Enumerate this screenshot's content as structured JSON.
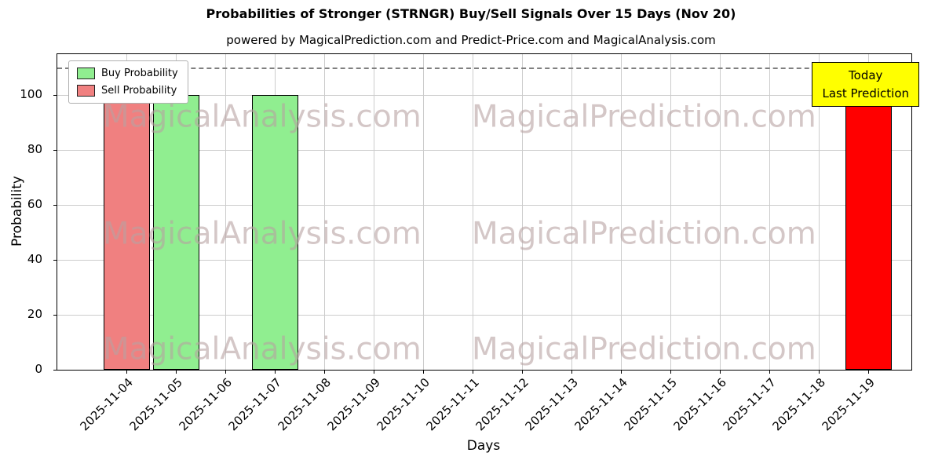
{
  "header": {
    "title": "Probabilities of Stronger (STRNGR) Buy/Sell Signals Over 15 Days (Nov 20)",
    "subtitle": "powered by MagicalPrediction.com and Predict-Price.com and MagicalAnalysis.com"
  },
  "chart_data": {
    "type": "bar",
    "title": "Probabilities of Stronger (STRNGR) Buy/Sell Signals Over 15 Days (Nov 20)",
    "subtitle": "powered by MagicalPrediction.com and Predict-Price.com and MagicalAnalysis.com",
    "xlabel": "Days",
    "ylabel": "Probability",
    "ylim": [
      0,
      115
    ],
    "yticks": [
      0,
      20,
      40,
      60,
      80,
      100
    ],
    "grid": true,
    "dashed_guide_y": 110,
    "categories": [
      "2025-11-04",
      "2025-11-05",
      "2025-11-06",
      "2025-11-07",
      "2025-11-08",
      "2025-11-09",
      "2025-11-10",
      "2025-11-11",
      "2025-11-12",
      "2025-11-13",
      "2025-11-14",
      "2025-11-15",
      "2025-11-16",
      "2025-11-17",
      "2025-11-18",
      "2025-11-19"
    ],
    "series": [
      {
        "name": "Buy Probability",
        "color": "#90ee90",
        "values": [
          0,
          100,
          0,
          100,
          0,
          0,
          0,
          0,
          0,
          0,
          0,
          0,
          0,
          0,
          0,
          0
        ]
      },
      {
        "name": "Sell Probability",
        "color": "#f08080",
        "values": [
          100,
          0,
          0,
          0,
          0,
          0,
          0,
          0,
          0,
          0,
          0,
          0,
          0,
          0,
          0,
          0
        ]
      },
      {
        "name": "Today Last Prediction",
        "color": "#ff0000",
        "values": [
          0,
          0,
          0,
          0,
          0,
          0,
          0,
          0,
          0,
          0,
          0,
          0,
          0,
          0,
          0,
          100
        ]
      }
    ],
    "legend": {
      "position": "upper left",
      "items": [
        {
          "label": "Buy Probability",
          "color": "#90ee90"
        },
        {
          "label": "Sell Probability",
          "color": "#f08080"
        }
      ]
    },
    "annotation_box": {
      "lines": [
        "Today",
        "Last Prediction"
      ],
      "bg_color": "#ffff00"
    }
  },
  "watermarks": {
    "left": "MagicalAnalysis.com",
    "right": "MagicalPrediction.com"
  }
}
